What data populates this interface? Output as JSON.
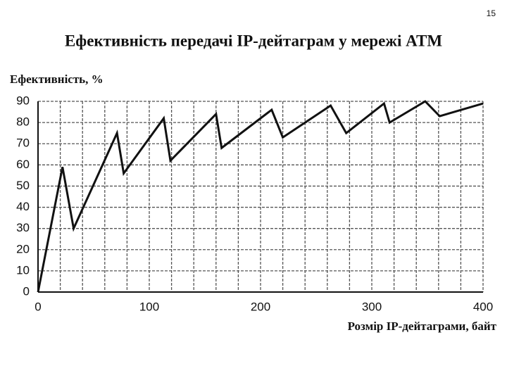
{
  "page_number": "15",
  "chart_data": {
    "type": "line",
    "title": "Ефективність передачі IP-дейтаграм у мережі ATM",
    "y_label": "Ефективність, %",
    "x_label": "Розмір IP-дейтаграми, байт",
    "x": [
      0,
      22,
      32,
      71,
      77,
      113,
      119,
      160,
      165,
      210,
      220,
      263,
      277,
      311,
      316,
      348,
      361,
      400
    ],
    "series": [
      {
        "color": "#111111",
        "values": [
          0,
          59,
          30,
          75,
          56,
          82,
          62,
          84,
          68,
          86,
          73,
          88,
          75,
          89,
          80,
          90,
          83,
          89
        ]
      }
    ],
    "xlim": [
      0,
      400
    ],
    "ylim": [
      0,
      90
    ],
    "xticks": [
      0,
      100,
      200,
      300,
      400
    ],
    "xminor": [
      20,
      40,
      60,
      80,
      120,
      140,
      160,
      180,
      220,
      240,
      260,
      280,
      320,
      340,
      360,
      380
    ],
    "yticks": [
      0,
      10,
      20,
      30,
      40,
      50,
      60,
      70,
      80,
      90
    ],
    "grid": true
  }
}
